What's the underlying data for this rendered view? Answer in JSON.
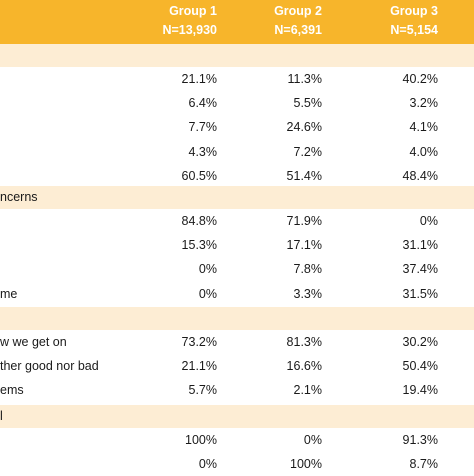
{
  "header": {
    "columns": [
      {
        "name": "Group 1",
        "n": "N=13,930"
      },
      {
        "name": "Group 2",
        "n": "N=6,391"
      },
      {
        "name": "Group 3",
        "n": "N=5,154"
      }
    ]
  },
  "sections": [
    {
      "label": "",
      "rows": [
        {
          "label": "",
          "values": [
            "21.1%",
            "11.3%",
            "40.2%"
          ]
        },
        {
          "label": "",
          "values": [
            "6.4%",
            "5.5%",
            "3.2%"
          ]
        },
        {
          "label": "",
          "values": [
            "7.7%",
            "24.6%",
            "4.1%"
          ]
        },
        {
          "label": "",
          "values": [
            "4.3%",
            "7.2%",
            "4.0%"
          ]
        },
        {
          "label": "",
          "values": [
            "60.5%",
            "51.4%",
            "48.4%"
          ]
        }
      ]
    },
    {
      "label": "ncerns",
      "rows": [
        {
          "label": "",
          "values": [
            "84.8%",
            "71.9%",
            "0%"
          ]
        },
        {
          "label": "",
          "values": [
            "15.3%",
            "17.1%",
            "31.1%"
          ]
        },
        {
          "label": "",
          "values": [
            "0%",
            "7.8%",
            "37.4%"
          ]
        },
        {
          "label": "me",
          "values": [
            "0%",
            "3.3%",
            "31.5%"
          ]
        }
      ]
    },
    {
      "label": "",
      "rows": [
        {
          "label": "w we get on",
          "values": [
            "73.2%",
            "81.3%",
            "30.2%"
          ]
        },
        {
          "label": "ther good nor bad",
          "values": [
            "21.1%",
            "16.6%",
            "50.4%"
          ]
        },
        {
          "label": "ems",
          "values": [
            "5.7%",
            "2.1%",
            "19.4%"
          ]
        }
      ]
    },
    {
      "label": "l",
      "rows": [
        {
          "label": "",
          "values": [
            "100%",
            "0%",
            "91.3%"
          ]
        },
        {
          "label": "",
          "values": [
            "0%",
            "100%",
            "8.7%"
          ]
        }
      ]
    }
  ]
}
